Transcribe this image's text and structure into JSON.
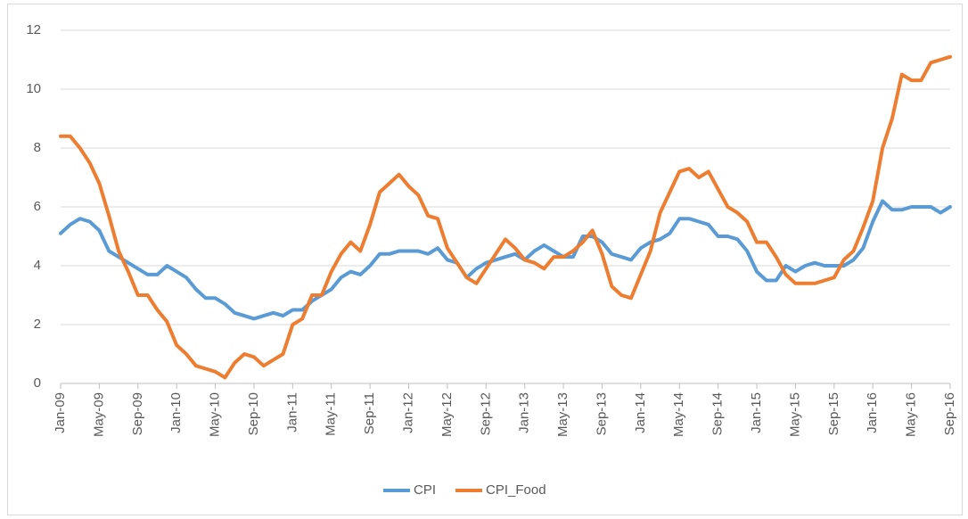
{
  "chart_data": {
    "type": "line",
    "categories": [
      "Jan-09",
      null,
      null,
      null,
      "May-09",
      null,
      null,
      null,
      "Sep-09",
      null,
      null,
      null,
      "Jan-10",
      null,
      null,
      null,
      "May-10",
      null,
      null,
      null,
      "Sep-10",
      null,
      null,
      null,
      "Jan-11",
      null,
      null,
      null,
      "May-11",
      null,
      null,
      null,
      "Sep-11",
      null,
      null,
      null,
      "Jan-12",
      null,
      null,
      null,
      "May-12",
      null,
      null,
      null,
      "Sep-12",
      null,
      null,
      null,
      "Jan-13",
      null,
      null,
      null,
      "May-13",
      null,
      null,
      null,
      "Sep-13",
      null,
      null,
      null,
      "Jan-14",
      null,
      null,
      null,
      "May-14",
      null,
      null,
      null,
      "Sep-14",
      null,
      null,
      null,
      "Jan-15",
      null,
      null,
      null,
      "May-15",
      null,
      null,
      null,
      "Sep-15",
      null,
      null,
      null,
      "Jan-16",
      null,
      null,
      null,
      "May-16",
      null,
      null,
      null,
      "Sep-16"
    ],
    "series": [
      {
        "name": "CPI",
        "color": "#5b9bd5",
        "values": [
          5.1,
          5.4,
          5.6,
          5.5,
          5.2,
          4.5,
          4.3,
          4.1,
          3.9,
          3.7,
          3.7,
          4.0,
          3.8,
          3.6,
          3.2,
          2.9,
          2.9,
          2.7,
          2.4,
          2.3,
          2.2,
          2.3,
          2.4,
          2.3,
          2.5,
          2.5,
          2.8,
          3.0,
          3.2,
          3.6,
          3.8,
          3.7,
          4.0,
          4.4,
          4.4,
          4.5,
          4.5,
          4.5,
          4.4,
          4.6,
          4.2,
          4.1,
          3.6,
          3.9,
          4.1,
          4.2,
          4.3,
          4.4,
          4.2,
          4.5,
          4.7,
          4.5,
          4.3,
          4.3,
          5.0,
          5.0,
          4.8,
          4.4,
          4.3,
          4.2,
          4.6,
          4.8,
          4.9,
          5.1,
          5.6,
          5.6,
          5.5,
          5.4,
          5.0,
          5.0,
          4.9,
          4.5,
          3.8,
          3.5,
          3.5,
          4.0,
          3.8,
          4.0,
          4.1,
          4.0,
          4.0,
          4.0,
          4.2,
          4.6,
          5.5,
          6.2,
          5.9,
          5.9,
          6.0,
          6.0,
          6.0,
          5.8,
          6.0
        ]
      },
      {
        "name": "CPI_Food",
        "color": "#ed7d31",
        "values": [
          8.4,
          8.4,
          8.0,
          7.5,
          6.8,
          5.7,
          4.5,
          3.8,
          3.0,
          3.0,
          2.5,
          2.1,
          1.3,
          1.0,
          0.6,
          0.5,
          0.4,
          0.2,
          0.7,
          1.0,
          0.9,
          0.6,
          0.8,
          1.0,
          2.0,
          2.2,
          3.0,
          3.0,
          3.8,
          4.4,
          4.8,
          4.5,
          5.4,
          6.5,
          6.8,
          7.1,
          6.7,
          6.4,
          5.7,
          5.6,
          4.6,
          4.1,
          3.6,
          3.4,
          3.9,
          4.4,
          4.9,
          4.6,
          4.2,
          4.1,
          3.9,
          4.3,
          4.3,
          4.5,
          4.8,
          5.2,
          4.4,
          3.3,
          3.0,
          2.9,
          3.7,
          4.5,
          5.8,
          6.5,
          7.2,
          7.3,
          7.0,
          7.2,
          6.6,
          6.0,
          5.8,
          5.5,
          4.8,
          4.8,
          4.3,
          3.7,
          3.4,
          3.4,
          3.4,
          3.5,
          3.6,
          4.2,
          4.5,
          5.3,
          6.2,
          8.0,
          9.0,
          10.5,
          10.3,
          10.3,
          10.9,
          11.0,
          11.1
        ]
      }
    ],
    "ylim": [
      0,
      12
    ],
    "yticks": [
      0,
      2,
      4,
      6,
      8,
      10,
      12
    ],
    "grid": true,
    "legend": "bottom"
  }
}
